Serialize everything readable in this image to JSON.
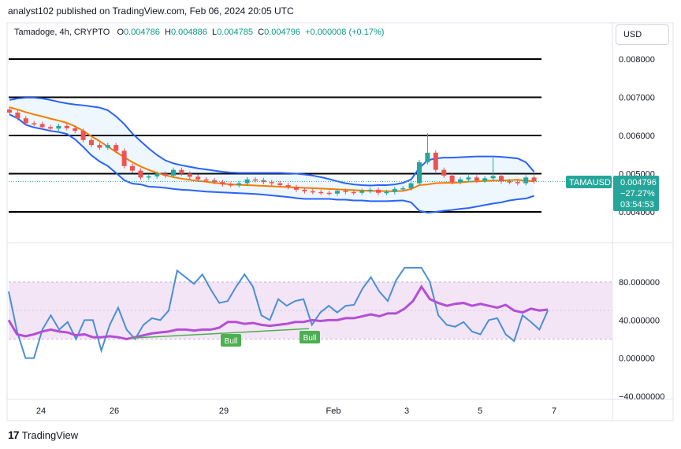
{
  "header": {
    "published": "analyst102 published on TradingView.com, Feb 06, 2024 20:05 UTC"
  },
  "legend": {
    "symbol": "Tamadoge, 4h, CRYPTO",
    "o_label": "O",
    "o_value": "0.004786",
    "h_label": "H",
    "h_value": "0.004886",
    "l_label": "L",
    "l_value": "0.004785",
    "c_label": "C",
    "c_value": "0.004796",
    "change": "+0.000008 (+0.17%)"
  },
  "currency": "USD",
  "price_badge": {
    "ticker": "TAMAUSD",
    "price": "0.004796",
    "pct": "−27.27%",
    "countdown": "03:54:53"
  },
  "footer": {
    "brand": "TradingView"
  },
  "colors": {
    "bull": "#26a69a",
    "bear": "#ef5350",
    "bb": "#2962ff",
    "basis": "#f57c00",
    "stoch_k": "#4a8fd6",
    "stoch_d": "#b34fd6",
    "rsi_band": "#f3e5f5",
    "divergence": "#4caf50"
  },
  "chart_data": [
    {
      "type": "candlestick",
      "title": "Tamadoge, 4h, CRYPTO",
      "y_ticks": [
        "0.008000",
        "0.007000",
        "0.006000",
        "0.005000",
        "0.004000"
      ],
      "x_ticks": [
        "24",
        "26",
        "29",
        "Feb",
        "3",
        "5",
        "7"
      ],
      "ylim": [
        0.0037,
        0.0087
      ],
      "horizontal_levels": [
        0.008,
        0.007,
        0.006,
        0.005,
        0.004
      ],
      "indicators": [
        "Bollinger Bands",
        "Moving average (basis)"
      ],
      "last_close": 0.004796
    },
    {
      "type": "line",
      "title": "",
      "y_ticks": [
        "80.000000",
        "40.000000",
        "0.000000",
        "−40.000000"
      ],
      "ylim": [
        -50,
        100
      ],
      "band": [
        20,
        80
      ],
      "series": [
        {
          "values": [
            70,
            28,
            0,
            0,
            30,
            45,
            30,
            38,
            20,
            40,
            40,
            8,
            35,
            53,
            30,
            20,
            35,
            42,
            40,
            50,
            92,
            85,
            78,
            88,
            72,
            58,
            60,
            75,
            88,
            75,
            45,
            40,
            62,
            55,
            60,
            62,
            35,
            48,
            55,
            48,
            55,
            56,
            73,
            85,
            70,
            60,
            82,
            95,
            95,
            95,
            80,
            45,
            35,
            33,
            38,
            28,
            25,
            40,
            42,
            25,
            18,
            45,
            38,
            30,
            50
          ]
        },
        {
          "values": [
            40,
            25,
            23,
            25,
            28,
            30,
            28,
            27,
            24,
            25,
            22,
            22,
            23,
            22,
            20,
            22,
            24,
            26,
            27,
            28,
            30,
            30,
            29,
            30,
            30,
            32,
            38,
            38,
            36,
            37,
            35,
            34,
            35,
            36,
            38,
            38,
            40,
            39,
            40,
            40,
            42,
            42,
            44,
            46,
            44,
            47,
            47,
            52,
            60,
            75,
            62,
            58,
            55,
            57,
            58,
            55,
            57,
            55,
            53,
            56,
            50,
            48,
            52,
            50,
            51
          ]
        }
      ],
      "annotations": [
        "Bull",
        "Bull"
      ]
    }
  ]
}
